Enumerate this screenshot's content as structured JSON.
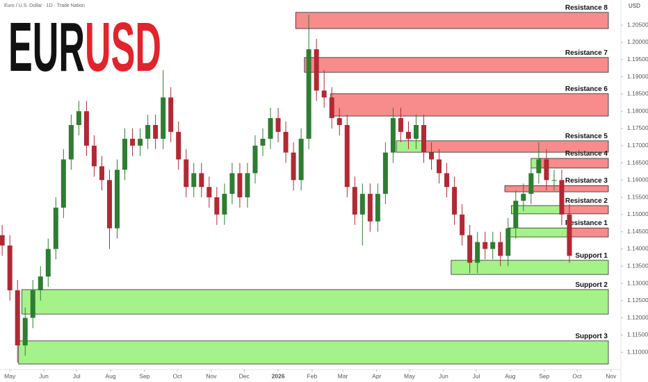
{
  "chart_data": {
    "type": "candlestick",
    "header": "Euro / U.S. Dollar · 1D · Trade Nation",
    "title": {
      "base": "EUR",
      "quote": "USD"
    },
    "title_colors": {
      "base": "#111111",
      "quote": "#e3232b"
    },
    "currency": "USD",
    "up_color": "#2e7d32",
    "down_color": "#b22833",
    "resistance_color": "#f88b8b",
    "support_color": "#a5f28a",
    "xlim": [
      -9,
      558
    ],
    "ylim": [
      1.1054,
      1.2123
    ],
    "xticks": [
      {
        "value": 0,
        "label": "May"
      },
      {
        "value": 31,
        "label": "Jun"
      },
      {
        "value": 61,
        "label": "Jul"
      },
      {
        "value": 92,
        "label": "Aug"
      },
      {
        "value": 123,
        "label": "Sep"
      },
      {
        "value": 153,
        "label": "Oct"
      },
      {
        "value": 184,
        "label": "Nov"
      },
      {
        "value": 214,
        "label": "Dec"
      },
      {
        "value": 245,
        "label": "2026"
      },
      {
        "value": 276,
        "label": "Feb"
      },
      {
        "value": 304,
        "label": "Mar"
      },
      {
        "value": 335,
        "label": "Apr"
      },
      {
        "value": 365,
        "label": "May"
      },
      {
        "value": 396,
        "label": "Jun"
      },
      {
        "value": 426,
        "label": "Jul"
      },
      {
        "value": 457,
        "label": "Aug"
      },
      {
        "value": 488,
        "label": "Sep"
      },
      {
        "value": 518,
        "label": "Oct"
      },
      {
        "value": 549,
        "label": "Nov"
      }
    ],
    "bold_xtick": 8,
    "yticks": [
      {
        "value": 1.11,
        "label": "1.11000"
      },
      {
        "value": 1.115,
        "label": "1.11500"
      },
      {
        "value": 1.12,
        "label": "1.12000"
      },
      {
        "value": 1.125,
        "label": "1.12500"
      },
      {
        "value": 1.13,
        "label": "1.13000"
      },
      {
        "value": 1.135,
        "label": "1.13500"
      },
      {
        "value": 1.14,
        "label": "1.14000"
      },
      {
        "value": 1.145,
        "label": "1.14500"
      },
      {
        "value": 1.15,
        "label": "1.15000"
      },
      {
        "value": 1.155,
        "label": "1.15500"
      },
      {
        "value": 1.16,
        "label": "1.16000"
      },
      {
        "value": 1.165,
        "label": "1.16500"
      },
      {
        "value": 1.17,
        "label": "1.17000"
      },
      {
        "value": 1.175,
        "label": "1.17500"
      },
      {
        "value": 1.18,
        "label": "1.18000"
      },
      {
        "value": 1.185,
        "label": "1.18500"
      },
      {
        "value": 1.19,
        "label": "1.19000"
      },
      {
        "value": 1.195,
        "label": "1.19500"
      },
      {
        "value": 1.2,
        "label": "1.20000"
      },
      {
        "value": 1.205,
        "label": "1.20500"
      }
    ],
    "x": [
      -7,
      0,
      7,
      14,
      21,
      28,
      35,
      42,
      49,
      56,
      63,
      70,
      77,
      84,
      91,
      98,
      105,
      112,
      119,
      126,
      133,
      140,
      147,
      154,
      161,
      168,
      175,
      182,
      189,
      196,
      203,
      210,
      217,
      224,
      231,
      238,
      245,
      252,
      259,
      266,
      273,
      280,
      287,
      294,
      301,
      308,
      315,
      322,
      329,
      336,
      343,
      350,
      357,
      364,
      371,
      378,
      385,
      392,
      399,
      406,
      413,
      420,
      427,
      434,
      441,
      448,
      455,
      462,
      469,
      476,
      483,
      490,
      497,
      504,
      511
    ],
    "open": [
      1.144,
      1.141,
      1.128,
      1.112,
      1.12,
      1.128,
      1.132,
      1.14,
      1.152,
      1.166,
      1.176,
      1.18,
      1.17,
      1.164,
      1.16,
      1.146,
      1.163,
      1.172,
      1.17,
      1.172,
      1.176,
      1.172,
      1.184,
      1.174,
      1.166,
      1.158,
      1.162,
      1.158,
      1.155,
      1.15,
      1.156,
      1.162,
      1.155,
      1.162,
      1.17,
      1.172,
      1.178,
      1.174,
      1.168,
      1.16,
      1.172,
      1.198,
      1.186,
      1.184,
      1.178,
      1.176,
      1.158,
      1.15,
      1.156,
      1.148,
      1.156,
      1.168,
      1.178,
      1.174,
      1.172,
      1.176,
      1.168,
      1.166,
      1.162,
      1.158,
      1.15,
      1.144,
      1.136,
      1.142,
      1.14,
      1.142,
      1.138,
      1.146,
      1.154,
      1.156,
      1.162,
      1.166,
      1.16,
      1.16,
      1.15
    ],
    "high": [
      1.147,
      1.144,
      1.131,
      1.123,
      1.131,
      1.135,
      1.143,
      1.155,
      1.169,
      1.179,
      1.183,
      1.183,
      1.173,
      1.167,
      1.163,
      1.166,
      1.175,
      1.175,
      1.175,
      1.179,
      1.179,
      1.192,
      1.187,
      1.177,
      1.169,
      1.165,
      1.165,
      1.161,
      1.158,
      1.159,
      1.165,
      1.165,
      1.165,
      1.173,
      1.175,
      1.181,
      1.181,
      1.177,
      1.171,
      1.175,
      1.208,
      1.201,
      1.192,
      1.187,
      1.181,
      1.179,
      1.161,
      1.159,
      1.159,
      1.159,
      1.171,
      1.181,
      1.181,
      1.177,
      1.179,
      1.179,
      1.171,
      1.169,
      1.165,
      1.161,
      1.153,
      1.147,
      1.145,
      1.145,
      1.145,
      1.145,
      1.149,
      1.157,
      1.159,
      1.165,
      1.171,
      1.169,
      1.163,
      1.163,
      1.153
    ],
    "low": [
      1.138,
      1.125,
      1.107,
      1.109,
      1.117,
      1.125,
      1.129,
      1.137,
      1.149,
      1.163,
      1.173,
      1.167,
      1.161,
      1.157,
      1.14,
      1.143,
      1.16,
      1.167,
      1.167,
      1.169,
      1.169,
      1.169,
      1.171,
      1.163,
      1.155,
      1.155,
      1.155,
      1.152,
      1.147,
      1.147,
      1.153,
      1.152,
      1.152,
      1.159,
      1.167,
      1.169,
      1.171,
      1.165,
      1.157,
      1.157,
      1.169,
      1.183,
      1.181,
      1.175,
      1.173,
      1.155,
      1.147,
      1.141,
      1.145,
      1.145,
      1.153,
      1.165,
      1.171,
      1.169,
      1.169,
      1.165,
      1.163,
      1.159,
      1.155,
      1.147,
      1.141,
      1.133,
      1.133,
      1.137,
      1.137,
      1.135,
      1.135,
      1.143,
      1.151,
      1.153,
      1.159,
      1.157,
      1.157,
      1.147,
      1.136
    ],
    "close": [
      1.141,
      1.128,
      1.112,
      1.12,
      1.128,
      1.132,
      1.14,
      1.152,
      1.166,
      1.176,
      1.18,
      1.17,
      1.164,
      1.16,
      1.146,
      1.163,
      1.172,
      1.17,
      1.172,
      1.176,
      1.172,
      1.184,
      1.174,
      1.166,
      1.158,
      1.162,
      1.158,
      1.155,
      1.15,
      1.156,
      1.162,
      1.155,
      1.162,
      1.17,
      1.172,
      1.178,
      1.174,
      1.168,
      1.16,
      1.172,
      1.198,
      1.186,
      1.184,
      1.178,
      1.176,
      1.158,
      1.15,
      1.156,
      1.148,
      1.156,
      1.168,
      1.178,
      1.174,
      1.172,
      1.176,
      1.168,
      1.166,
      1.162,
      1.158,
      1.15,
      1.144,
      1.136,
      1.142,
      1.14,
      1.142,
      1.138,
      1.146,
      1.154,
      1.156,
      1.162,
      1.166,
      1.16,
      1.16,
      1.15,
      1.138
    ],
    "zones": [
      {
        "name": "Resistance 8",
        "kind": "resistance",
        "low": 1.204,
        "high": 1.2087,
        "start": 261
      },
      {
        "name": "Resistance 7",
        "kind": "resistance",
        "low": 1.1913,
        "high": 1.1956,
        "start": 269
      },
      {
        "name": "Resistance 6",
        "kind": "resistance",
        "low": 1.1786,
        "high": 1.1851,
        "start": 293
      },
      {
        "name": "Resistance 5",
        "kind": "resistance",
        "low": 1.1681,
        "high": 1.1714,
        "start": 377,
        "support_start": 353
      },
      {
        "name": "Resistance 4",
        "kind": "resistance",
        "low": 1.1635,
        "high": 1.1663,
        "start": 484,
        "support_start": 476
      },
      {
        "name": "Resistance 3",
        "kind": "resistance",
        "low": 1.1566,
        "high": 1.1584,
        "start": 452
      },
      {
        "name": "Resistance 2",
        "kind": "resistance",
        "low": 1.1502,
        "high": 1.1526,
        "start": 503,
        "support_start": 458
      },
      {
        "name": "Resistance 1",
        "kind": "resistance",
        "low": 1.1435,
        "high": 1.1461,
        "start": 509,
        "support_start": 455
      },
      {
        "name": "Support 1",
        "kind": "support",
        "low": 1.1326,
        "high": 1.1367,
        "start": 403
      },
      {
        "name": "Support 2",
        "kind": "support",
        "low": 1.1211,
        "high": 1.1282,
        "start": 11
      },
      {
        "name": "Support 3",
        "kind": "support",
        "low": 1.1066,
        "high": 1.1133,
        "start": 8
      }
    ]
  }
}
